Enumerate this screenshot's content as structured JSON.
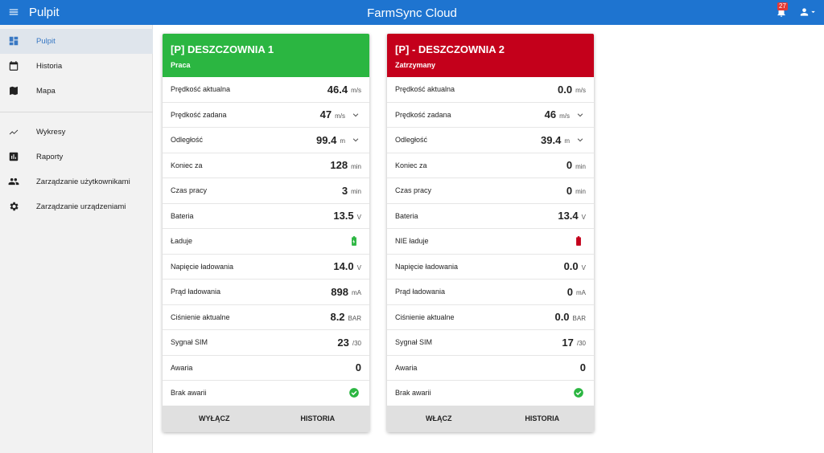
{
  "header": {
    "menu_title": "Pulpit",
    "app_title": "FarmSync Cloud",
    "notifications": "27"
  },
  "sidebar": {
    "items": [
      "Pulpit",
      "Historia",
      "Mapa",
      "Wykresy",
      "Raporty",
      "Zarządzanie użytkownikami",
      "Zarządzanie urządzeniami"
    ]
  },
  "cards": [
    {
      "title": "[P] DESZCZOWNIA 1",
      "status": "Praca",
      "color": "#2bb641",
      "rows": [
        {
          "label": "Prędkość aktualna",
          "value": "46.4",
          "unit": "m/s"
        },
        {
          "label": "Prędkość zadana",
          "value": "47",
          "unit": "m/s"
        },
        {
          "label": "Odległość",
          "value": "99.4",
          "unit": "m"
        },
        {
          "label": "Koniec za",
          "value": "128",
          "unit": "min"
        },
        {
          "label": "Czas pracy",
          "value": "3",
          "unit": "min"
        },
        {
          "label": "Bateria",
          "value": "13.5",
          "unit": "V"
        },
        {
          "label": "Ładuje"
        },
        {
          "label": "Napięcie ładowania",
          "value": "14.0",
          "unit": "V"
        },
        {
          "label": "Prąd ładowania",
          "value": "898",
          "unit": "mA"
        },
        {
          "label": "Ciśnienie aktualne",
          "value": "8.2",
          "unit": "BAR"
        },
        {
          "label": "Sygnał SIM",
          "value": "23",
          "unit": "/30"
        },
        {
          "label": "Awaria",
          "value": "0"
        },
        {
          "label": "Brak awarii"
        }
      ],
      "actions": [
        "WYŁĄCZ",
        "HISTORIA"
      ]
    },
    {
      "title": "[P] - DESZCZOWNIA 2",
      "status": "Zatrzymany",
      "color": "#c4001b",
      "rows": [
        {
          "label": "Prędkość aktualna",
          "value": "0.0",
          "unit": "m/s"
        },
        {
          "label": "Prędkość zadana",
          "value": "46",
          "unit": "m/s"
        },
        {
          "label": "Odległość",
          "value": "39.4",
          "unit": "m"
        },
        {
          "label": "Koniec za",
          "value": "0",
          "unit": "min"
        },
        {
          "label": "Czas pracy",
          "value": "0",
          "unit": "min"
        },
        {
          "label": "Bateria",
          "value": "13.4",
          "unit": "V"
        },
        {
          "label": "NIE ładuje"
        },
        {
          "label": "Napięcie ładowania",
          "value": "0.0",
          "unit": "V"
        },
        {
          "label": "Prąd ładowania",
          "value": "0",
          "unit": "mA"
        },
        {
          "label": "Ciśnienie aktualne",
          "value": "0.0",
          "unit": "BAR"
        },
        {
          "label": "Sygnał SIM",
          "value": "17",
          "unit": "/30"
        },
        {
          "label": "Awaria",
          "value": "0"
        },
        {
          "label": "Brak awarii"
        }
      ],
      "actions": [
        "WŁĄCZ",
        "HISTORIA"
      ]
    }
  ]
}
